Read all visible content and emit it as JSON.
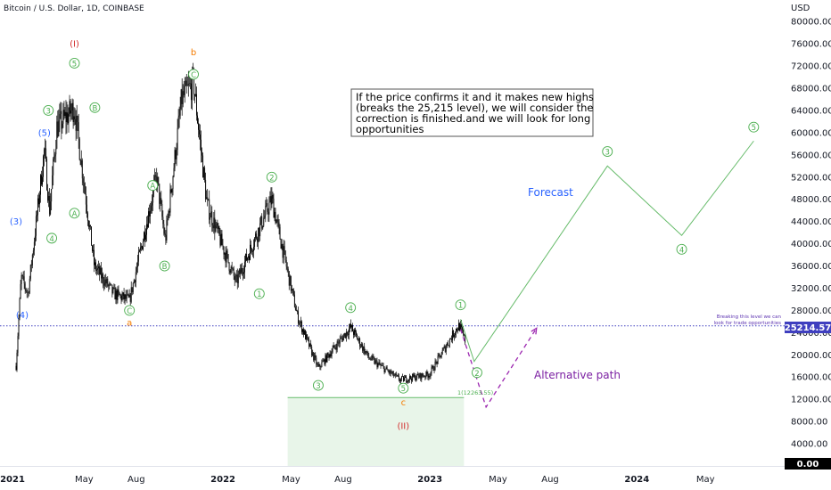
{
  "chart_title": "Bitcoin / U.S. Dollar, 1D, COINBASE",
  "currency": "USD",
  "colors": {
    "wave_green": "#4caf50",
    "wave_blue": "#2962ff",
    "wave_orange": "#f57c00",
    "wave_red": "#d32f2f",
    "forecast_line": "#66bb6a",
    "alt_path": "#9c27b0",
    "level_line": "#3f3fbf",
    "zone_fill": "#e8f5e9",
    "candle": "#000000"
  },
  "chart_data": {
    "type": "candlestick",
    "x_ticks": [
      "2021",
      "May",
      "Aug",
      "2022",
      "May",
      "Aug",
      "2023",
      "May",
      "Aug",
      "2024",
      "May"
    ],
    "y_ticks": [
      "80000.00",
      "76000.00",
      "72000.00",
      "68000.00",
      "64000.00",
      "60000.00",
      "56000.00",
      "52000.00",
      "48000.00",
      "44000.00",
      "40000.00",
      "36000.00",
      "32000.00",
      "28000.00",
      "24000.00",
      "20000.00",
      "16000.00",
      "12000.00",
      "8000.00",
      "4000.00"
    ],
    "y_range": [
      0,
      82000
    ],
    "price_path": [
      {
        "date": "2021-01-01",
        "price": 18000
      },
      {
        "date": "2021-01-10",
        "price": 34000
      },
      {
        "date": "2021-01-22",
        "price": 31000
      },
      {
        "date": "2021-02-20",
        "price": 57000
      },
      {
        "date": "2021-03-01",
        "price": 46000
      },
      {
        "date": "2021-03-14",
        "price": 61000
      },
      {
        "date": "2021-04-14",
        "price": 64500
      },
      {
        "date": "2021-05-19",
        "price": 36000
      },
      {
        "date": "2021-06-22",
        "price": 31000
      },
      {
        "date": "2021-07-20",
        "price": 29800
      },
      {
        "date": "2021-09-06",
        "price": 52000
      },
      {
        "date": "2021-09-21",
        "price": 40500
      },
      {
        "date": "2021-10-20",
        "price": 66000
      },
      {
        "date": "2021-11-10",
        "price": 69000
      },
      {
        "date": "2021-12-04",
        "price": 47000
      },
      {
        "date": "2022-01-24",
        "price": 33000
      },
      {
        "date": "2022-03-28",
        "price": 48000
      },
      {
        "date": "2022-05-12",
        "price": 27000
      },
      {
        "date": "2022-06-18",
        "price": 17600
      },
      {
        "date": "2022-08-14",
        "price": 25000
      },
      {
        "date": "2022-09-15",
        "price": 19500
      },
      {
        "date": "2022-11-09",
        "price": 15500
      },
      {
        "date": "2022-12-31",
        "price": 16500
      },
      {
        "date": "2023-02-15",
        "price": 24500
      },
      {
        "date": "2023-02-22",
        "price": 25250
      },
      {
        "date": "2023-03-05",
        "price": 22300
      }
    ],
    "forecast_path": [
      {
        "date": "2023-02-24",
        "price": 26400
      },
      {
        "date": "2023-03-20",
        "price": 18800
      },
      {
        "date": "2023-11-10",
        "price": 54000
      },
      {
        "date": "2024-03-20",
        "price": 41500
      },
      {
        "date": "2024-07-25",
        "price": 58500
      }
    ],
    "alternative_path": [
      {
        "date": "2023-02-24",
        "price": 24600
      },
      {
        "date": "2023-04-10",
        "price": 10600
      },
      {
        "date": "2023-07-08",
        "price": 24800
      }
    ],
    "level": {
      "price": 25214.57,
      "label": "25214.57"
    },
    "zero_label": "0.00",
    "target_zone": {
      "start": "2022-04-25",
      "end": "2023-03-02",
      "top": 12300,
      "bottom": 0
    },
    "fib_label": "1(12263.55)",
    "wave_labels": [
      {
        "text": "(3)",
        "date": "2021-01-01",
        "price": 44000,
        "style": "plain",
        "color": "wave_blue"
      },
      {
        "text": "(4)",
        "date": "2021-01-12",
        "price": 27200,
        "style": "plain",
        "color": "wave_blue"
      },
      {
        "text": "(5)",
        "date": "2021-02-20",
        "price": 60000,
        "style": "plain",
        "color": "wave_blue"
      },
      {
        "text": "3",
        "date": "2021-02-27",
        "price": 64000,
        "style": "circle",
        "color": "wave_green"
      },
      {
        "text": "4",
        "date": "2021-03-05",
        "price": 41000,
        "style": "circle",
        "color": "wave_green"
      },
      {
        "text": "(I)",
        "date": "2021-04-14",
        "price": 76000,
        "style": "plain",
        "color": "wave_red"
      },
      {
        "text": "5",
        "date": "2021-04-14",
        "price": 72500,
        "style": "circle",
        "color": "wave_green"
      },
      {
        "text": "A",
        "date": "2021-04-14",
        "price": 45500,
        "style": "circle",
        "color": "wave_green"
      },
      {
        "text": "B",
        "date": "2021-05-20",
        "price": 64500,
        "style": "circle",
        "color": "wave_green"
      },
      {
        "text": "C",
        "date": "2021-07-20",
        "price": 28000,
        "style": "circle",
        "color": "wave_green"
      },
      {
        "text": "a",
        "date": "2021-07-20",
        "price": 25800,
        "style": "plain",
        "color": "wave_orange"
      },
      {
        "text": "A",
        "date": "2021-08-30",
        "price": 50500,
        "style": "circle",
        "color": "wave_green"
      },
      {
        "text": "B",
        "date": "2021-09-20",
        "price": 36000,
        "style": "circle",
        "color": "wave_green"
      },
      {
        "text": "b",
        "date": "2021-11-10",
        "price": 74500,
        "style": "plain",
        "color": "wave_orange"
      },
      {
        "text": "C",
        "date": "2021-11-10",
        "price": 70500,
        "style": "circle",
        "color": "wave_green"
      },
      {
        "text": "1",
        "date": "2022-03-06",
        "price": 31000,
        "style": "circle",
        "color": "wave_green"
      },
      {
        "text": "2",
        "date": "2022-03-28",
        "price": 52000,
        "style": "circle",
        "color": "wave_green"
      },
      {
        "text": "3",
        "date": "2022-06-18",
        "price": 14500,
        "style": "circle",
        "color": "wave_green"
      },
      {
        "text": "4",
        "date": "2022-08-14",
        "price": 28500,
        "style": "circle",
        "color": "wave_green"
      },
      {
        "text": "5",
        "date": "2022-11-15",
        "price": 14000,
        "style": "circle",
        "color": "wave_green"
      },
      {
        "text": "c",
        "date": "2022-11-15",
        "price": 11500,
        "style": "plain",
        "color": "wave_orange"
      },
      {
        "text": "(II)",
        "date": "2022-11-15",
        "price": 7200,
        "style": "plain",
        "color": "wave_red"
      },
      {
        "text": "1",
        "date": "2023-02-24",
        "price": 29000,
        "style": "circle",
        "color": "wave_green"
      },
      {
        "text": "2",
        "date": "2023-03-25",
        "price": 16800,
        "style": "circle",
        "color": "wave_green"
      },
      {
        "text": "3",
        "date": "2023-11-10",
        "price": 56600,
        "style": "circle",
        "color": "wave_green"
      },
      {
        "text": "4",
        "date": "2024-03-20",
        "price": 39000,
        "style": "circle",
        "color": "wave_green"
      },
      {
        "text": "5",
        "date": "2024-07-25",
        "price": 61000,
        "style": "circle",
        "color": "wave_green"
      }
    ],
    "annotations": {
      "note_lines": [
        "If the price confirms it and it makes new highs",
        "(breaks the 25,215 level), we will consider the",
        "correction is finished.and we will look for long",
        "opportunities"
      ],
      "forecast_label": "Forecast",
      "alt_label": "Alternative path",
      "level_note_lines": [
        "Breaking this level we can",
        "look for trade opportunities"
      ]
    }
  }
}
